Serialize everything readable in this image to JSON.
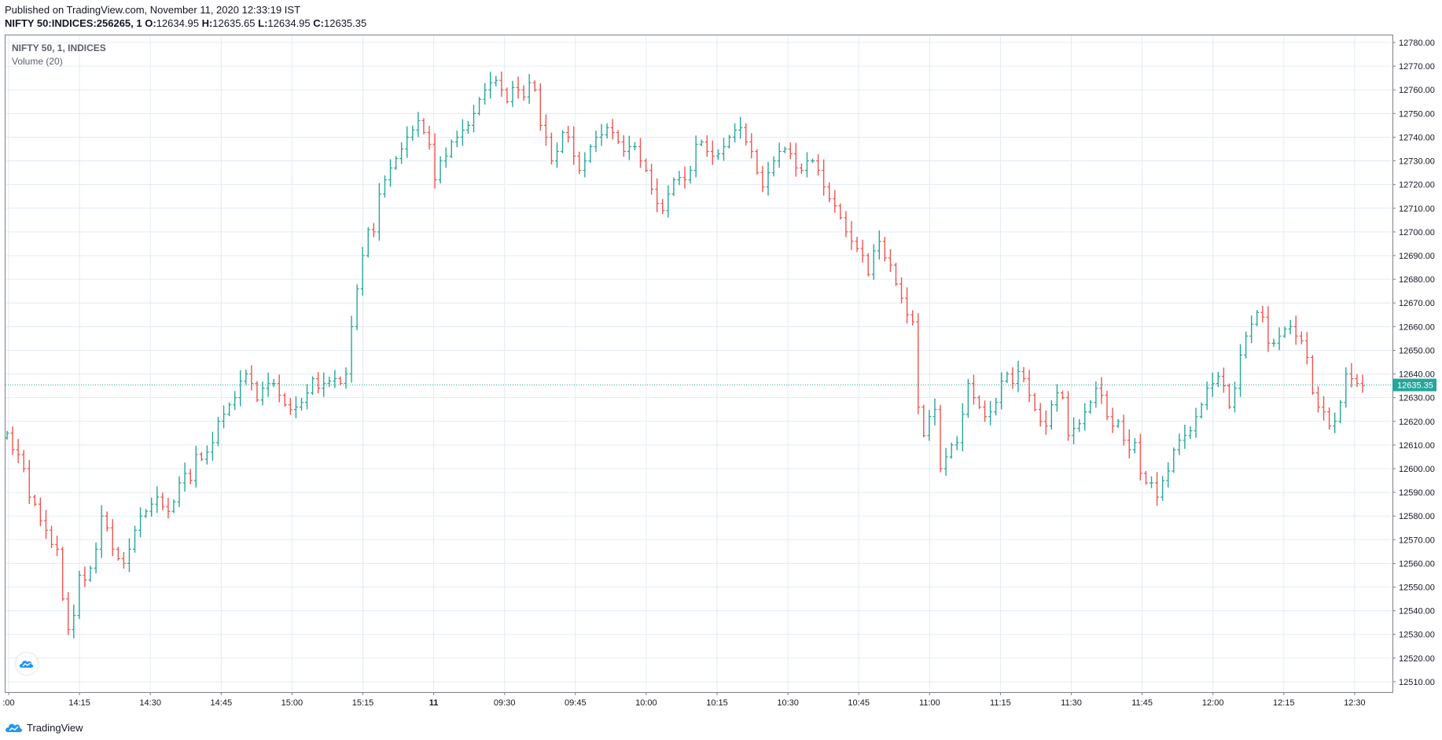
{
  "header": {
    "published": "Published on TradingView.com, November 11, 2020 12:33:19 IST",
    "symbol": "NIFTY 50:INDICES:256265, 1",
    "open_label": "O:",
    "open": "12634.95",
    "high_label": "H:",
    "high": "12635.65",
    "low_label": "L:",
    "low": "12634.95",
    "close_label": "C:",
    "close": "12635.35"
  },
  "legend": {
    "main": "NIFTY 50, 1, INDICES",
    "indicator": "Volume (20)"
  },
  "footer": {
    "brand": "TradingView"
  },
  "colors": {
    "up": "#26a69a",
    "down": "#ef5350",
    "grid": "#e1ecf2",
    "axis_text": "#131722",
    "price_line": "#26a69a"
  },
  "chart_data": {
    "type": "ohlc",
    "y_axis_ticks": [
      12780,
      12770,
      12760,
      12750,
      12740,
      12730,
      12720,
      12710,
      12700,
      12690,
      12680,
      12670,
      12660,
      12650,
      12640,
      12630,
      12620,
      12610,
      12600,
      12590,
      12580,
      12570,
      12560,
      12550,
      12540,
      12530,
      12520,
      12510
    ],
    "ylim": [
      12506,
      12783
    ],
    "x_axis_ticks": [
      ":00",
      "14:15",
      "14:30",
      "14:45",
      "15:00",
      "15:15",
      "11",
      "09:30",
      "09:45",
      "10:00",
      "10:15",
      "10:30",
      "10:45",
      "11:00",
      "11:15",
      "11:30",
      "11:45",
      "12:00",
      "12:15",
      "12:30"
    ],
    "last_price": "12635.35",
    "closes": [
      12615,
      12608,
      12606,
      12600,
      12588,
      12585,
      12578,
      12574,
      12568,
      12566,
      12545,
      12532,
      12538,
      12555,
      12553,
      12558,
      12566,
      12580,
      12575,
      12566,
      12562,
      12560,
      12566,
      12574,
      12580,
      12582,
      12585,
      12588,
      12584,
      12582,
      12586,
      12594,
      12598,
      12595,
      12606,
      12604,
      12607,
      12611,
      12620,
      12623,
      12627,
      12630,
      12637,
      12640,
      12636,
      12629,
      12634,
      12636,
      12636,
      12631,
      12627,
      12625,
      12626,
      12628,
      12632,
      12638,
      12634,
      12636,
      12637,
      12638,
      12636,
      12640,
      12660,
      12676,
      12690,
      12701,
      12700,
      12716,
      12722,
      12727,
      12731,
      12735,
      12740,
      12743,
      12747,
      12742,
      12737,
      12722,
      12730,
      12732,
      12738,
      12740,
      12743,
      12745,
      12750,
      12756,
      12760,
      12763,
      12764,
      12760,
      12755,
      12761,
      12760,
      12757,
      12763,
      12760,
      12745,
      12740,
      12730,
      12734,
      12742,
      12740,
      12732,
      12726,
      12730,
      12736,
      12740,
      12741,
      12744,
      12742,
      12738,
      12734,
      12736,
      12736,
      12730,
      12726,
      12718,
      12712,
      12709,
      12716,
      12722,
      12723,
      12722,
      12726,
      12737,
      12738,
      12734,
      12732,
      12733,
      12736,
      12740,
      12743,
      12744,
      12738,
      12734,
      12725,
      12719,
      12725,
      12730,
      12734,
      12735,
      12733,
      12727,
      12726,
      12730,
      12730,
      12726,
      12719,
      12714,
      12711,
      12706,
      12700,
      12696,
      12693,
      12690,
      12682,
      12692,
      12696,
      12689,
      12686,
      12678,
      12672,
      12665,
      12662,
      12626,
      12614,
      12622,
      12625,
      12600,
      12605,
      12610,
      12611,
      12623,
      12636,
      12630,
      12626,
      12622,
      12624,
      12628,
      12637,
      12640,
      12636,
      12641,
      12638,
      12631,
      12625,
      12620,
      12618,
      12627,
      12632,
      12630,
      12614,
      12617,
      12619,
      12624,
      12628,
      12634,
      12631,
      12622,
      12618,
      12620,
      12612,
      12608,
      12611,
      12598,
      12594,
      12594,
      12588,
      12595,
      12599,
      12608,
      12612,
      12614,
      12616,
      12622,
      12627,
      12634,
      12636,
      12639,
      12635,
      12626,
      12634,
      12648,
      12656,
      12661,
      12666,
      12664,
      12653,
      12653,
      12656,
      12659,
      12660,
      12656,
      12654,
      12647,
      12632,
      12626,
      12624,
      12618,
      12620,
      12628,
      12640,
      12638,
      12636,
      12635
    ]
  }
}
